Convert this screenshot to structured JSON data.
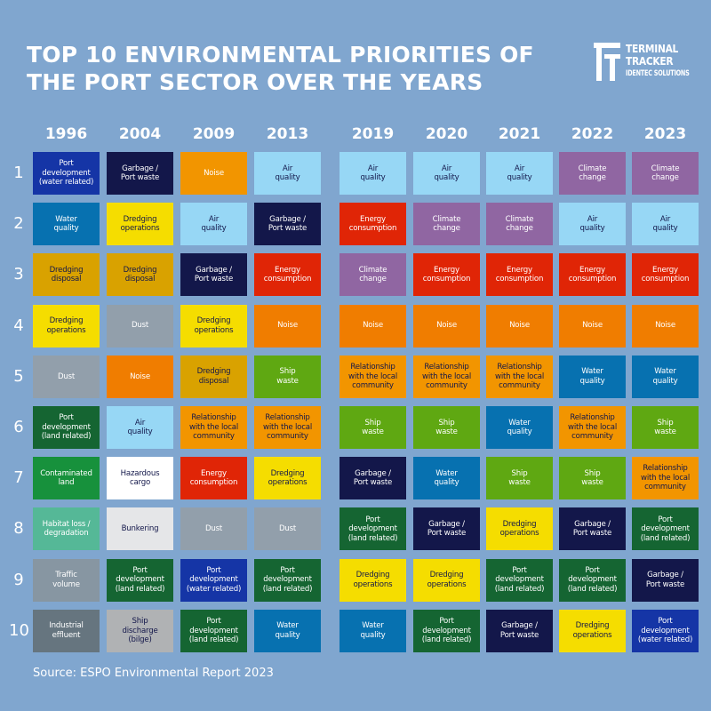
{
  "header": {
    "title_line1": "TOP 10 ENVIRONMENTAL PRIORITIES OF",
    "title_line2": "THE PORT SECTOR OVER THE YEARS"
  },
  "logo": {
    "icon": "terminal-tracker-logo-icon",
    "line1": "TERMINAL",
    "line2": "TRACKER",
    "line3": "IDENTEC SOLUTIONS"
  },
  "source": "Source: ESPO Environmental Report 2023",
  "years": [
    "1996",
    "2004",
    "2009",
    "2013",
    "2019",
    "2020",
    "2021",
    "2022",
    "2023"
  ],
  "ranks": [
    "1",
    "2",
    "3",
    "4",
    "5",
    "6",
    "7",
    "8",
    "9",
    "10"
  ],
  "categories": {
    "port_dev_water": {
      "label": "Port\ndevelopment\n(water related)",
      "bg": "#1535a6",
      "fg": "#ffffff"
    },
    "port_dev_land": {
      "label": "Port\ndevelopment\n(land related)",
      "bg": "#156532",
      "fg": "#ffffff"
    },
    "garbage": {
      "label": "Garbage /\nPort waste",
      "bg": "#13174a",
      "fg": "#ffffff"
    },
    "noise": {
      "label": "Noise",
      "bg": "#f07d00",
      "fg": "#ffffff"
    },
    "air": {
      "label": "Air\nquality",
      "bg": "#97d7f5",
      "fg": "#13174a"
    },
    "water": {
      "label": "Water\nquality",
      "bg": "#0771b0",
      "fg": "#ffffff"
    },
    "dredging_ops": {
      "label": "Dredging\noperations",
      "bg": "#f5dd00",
      "fg": "#13174a"
    },
    "dredging_disposal": {
      "label": "Dredging\ndisposal",
      "bg": "#d9a200",
      "fg": "#13174a"
    },
    "energy": {
      "label": "Energy\nconsumption",
      "bg": "#e02506",
      "fg": "#ffffff"
    },
    "dust": {
      "label": "Dust",
      "bg": "#929fab",
      "fg": "#ffffff"
    },
    "ship_waste": {
      "label": "Ship\nwaste",
      "bg": "#5fa812",
      "fg": "#ffffff"
    },
    "relationship": {
      "label": "Relationship\nwith the local\ncommunity",
      "bg": "#f29500",
      "fg": "#13174a"
    },
    "climate": {
      "label": "Climate\nchange",
      "bg": "#9066a2",
      "fg": "#ffffff"
    },
    "contaminated": {
      "label": "Contaminated\nland",
      "bg": "#17913c",
      "fg": "#ffffff"
    },
    "hazardous": {
      "label": "Hazardous\ncargo",
      "bg": "#ffffff",
      "fg": "#13174a"
    },
    "habitat": {
      "label": "Habitat loss /\ndegradation",
      "bg": "#55b897",
      "fg": "#ffffff"
    },
    "bunkering": {
      "label": "Bunkering",
      "bg": "#e5e6e8",
      "fg": "#13174a"
    },
    "traffic": {
      "label": "Traffic\nvolume",
      "bg": "#8796a2",
      "fg": "#ffffff"
    },
    "industrial": {
      "label": "Industrial\neffluent",
      "bg": "#66757f",
      "fg": "#ffffff"
    },
    "ship_discharge": {
      "label": "Ship\ndischarge\n(bilge)",
      "bg": "#b0b2b4",
      "fg": "#13174a"
    },
    "noise_light": {
      "label": "Noise",
      "bg": "#f29500",
      "fg": "#ffffff"
    }
  },
  "chart_data": {
    "type": "table",
    "title": "TOP 10 ENVIRONMENTAL PRIORITIES OF THE PORT SECTOR OVER THE YEARS",
    "columns": [
      "1996",
      "2004",
      "2009",
      "2013",
      "2019",
      "2020",
      "2021",
      "2022",
      "2023"
    ],
    "rows": [
      "1",
      "2",
      "3",
      "4",
      "5",
      "6",
      "7",
      "8",
      "9",
      "10"
    ],
    "grid": [
      [
        "port_dev_water",
        "garbage",
        "noise_light",
        "air",
        "air",
        "air",
        "air",
        "climate",
        "climate"
      ],
      [
        "water",
        "dredging_ops",
        "air",
        "garbage",
        "energy",
        "climate",
        "climate",
        "air",
        "air"
      ],
      [
        "dredging_disposal",
        "dredging_disposal",
        "garbage",
        "energy",
        "climate",
        "energy",
        "energy",
        "energy",
        "energy"
      ],
      [
        "dredging_ops",
        "dust",
        "dredging_ops",
        "noise",
        "noise",
        "noise",
        "noise",
        "noise",
        "noise"
      ],
      [
        "dust",
        "noise",
        "dredging_disposal",
        "ship_waste",
        "relationship",
        "relationship",
        "relationship",
        "water",
        "water"
      ],
      [
        "port_dev_land",
        "air",
        "relationship",
        "relationship",
        "ship_waste",
        "ship_waste",
        "water",
        "relationship",
        "ship_waste"
      ],
      [
        "contaminated",
        "hazardous",
        "energy",
        "dredging_ops",
        "garbage",
        "water",
        "ship_waste",
        "ship_waste",
        "relationship"
      ],
      [
        "habitat",
        "bunkering",
        "dust",
        "dust",
        "port_dev_land",
        "garbage",
        "dredging_ops",
        "garbage",
        "port_dev_land"
      ],
      [
        "traffic",
        "port_dev_land",
        "port_dev_water",
        "port_dev_land",
        "dredging_ops",
        "dredging_ops",
        "port_dev_land",
        "port_dev_land",
        "garbage"
      ],
      [
        "industrial",
        "ship_discharge",
        "port_dev_land",
        "water",
        "water",
        "port_dev_land",
        "garbage",
        "dredging_ops",
        "port_dev_water"
      ]
    ],
    "source": "Source: ESPO Environmental Report 2023"
  }
}
